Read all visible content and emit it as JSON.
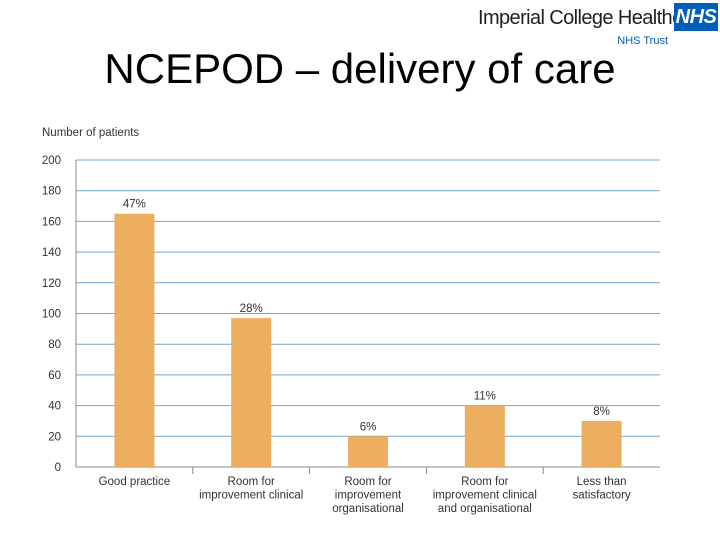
{
  "header": {
    "organisation": "Imperial College Healthcare",
    "badge": "NHS",
    "trust": "NHS Trust"
  },
  "slide": {
    "title": "NCEPOD – delivery of care"
  },
  "colors": {
    "bar": "#ecaf5f",
    "grid": "#6fa8d1",
    "axis": "#8a8a8a",
    "text": "#333333"
  },
  "chart_data": {
    "type": "bar",
    "title": "",
    "ylabel": "Number of patients",
    "xlabel": "",
    "ylim": [
      0,
      200
    ],
    "yticks": [
      0,
      20,
      40,
      60,
      80,
      100,
      120,
      140,
      160,
      180,
      200
    ],
    "grid": true,
    "categories": [
      [
        "Good practice"
      ],
      [
        "Room for",
        "improvement clinical"
      ],
      [
        "Room for",
        "improvement",
        "organisational"
      ],
      [
        "Room for",
        "improvement clinical",
        "and organisational"
      ],
      [
        "Less than",
        "satisfactory"
      ]
    ],
    "values": [
      165,
      97,
      20,
      40,
      30
    ],
    "data_labels": [
      "47%",
      "28%",
      "6%",
      "11%",
      "8%"
    ]
  }
}
